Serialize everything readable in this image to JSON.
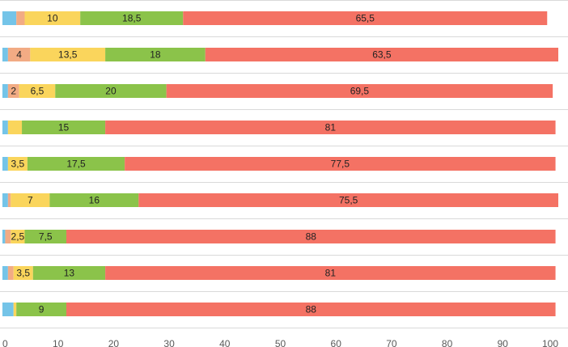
{
  "chart_data": {
    "type": "bar",
    "orientation": "horizontal",
    "stacked": true,
    "title": "",
    "xlabel": "",
    "ylabel": "",
    "xlim": [
      0,
      100
    ],
    "x_ticks": [
      "0",
      "10",
      "20",
      "30",
      "40",
      "50",
      "60",
      "70",
      "80",
      "90",
      "100"
    ],
    "grid": "horizontal separators",
    "legend": "none",
    "series_colors": [
      "#74c4e8",
      "#f2ab84",
      "#fad55c",
      "#8bc34a",
      "#f47264"
    ],
    "bars": [
      {
        "values": [
          2.5,
          1.5,
          10,
          18.5,
          65.5
        ],
        "labels": [
          "",
          "",
          "10",
          "18,5",
          "65,5"
        ]
      },
      {
        "values": [
          1,
          4,
          13.5,
          18,
          63.5
        ],
        "labels": [
          "",
          "4",
          "13,5",
          "18",
          "63,5"
        ]
      },
      {
        "values": [
          1,
          2,
          6.5,
          20,
          69.5
        ],
        "labels": [
          "",
          "2",
          "6,5",
          "20",
          "69,5"
        ]
      },
      {
        "values": [
          1,
          0,
          2.5,
          15,
          81
        ],
        "labels": [
          "",
          "",
          "",
          "15",
          "81"
        ]
      },
      {
        "values": [
          1,
          0,
          3.5,
          17.5,
          77.5
        ],
        "labels": [
          "",
          "",
          "3,5",
          "17,5",
          "77,5"
        ]
      },
      {
        "values": [
          1,
          0.5,
          7,
          16,
          75.5
        ],
        "labels": [
          "",
          "",
          "7",
          "16",
          "75,5"
        ]
      },
      {
        "values": [
          0.5,
          1,
          2.5,
          7.5,
          88
        ],
        "labels": [
          "",
          "",
          "2,5",
          "7,5",
          "88"
        ]
      },
      {
        "values": [
          1,
          1,
          3.5,
          13,
          81
        ],
        "labels": [
          "",
          "",
          "3,5",
          "13",
          "81"
        ]
      },
      {
        "values": [
          2,
          0,
          0.5,
          9,
          88
        ],
        "labels": [
          "",
          "",
          "",
          "9",
          "88"
        ]
      }
    ]
  }
}
